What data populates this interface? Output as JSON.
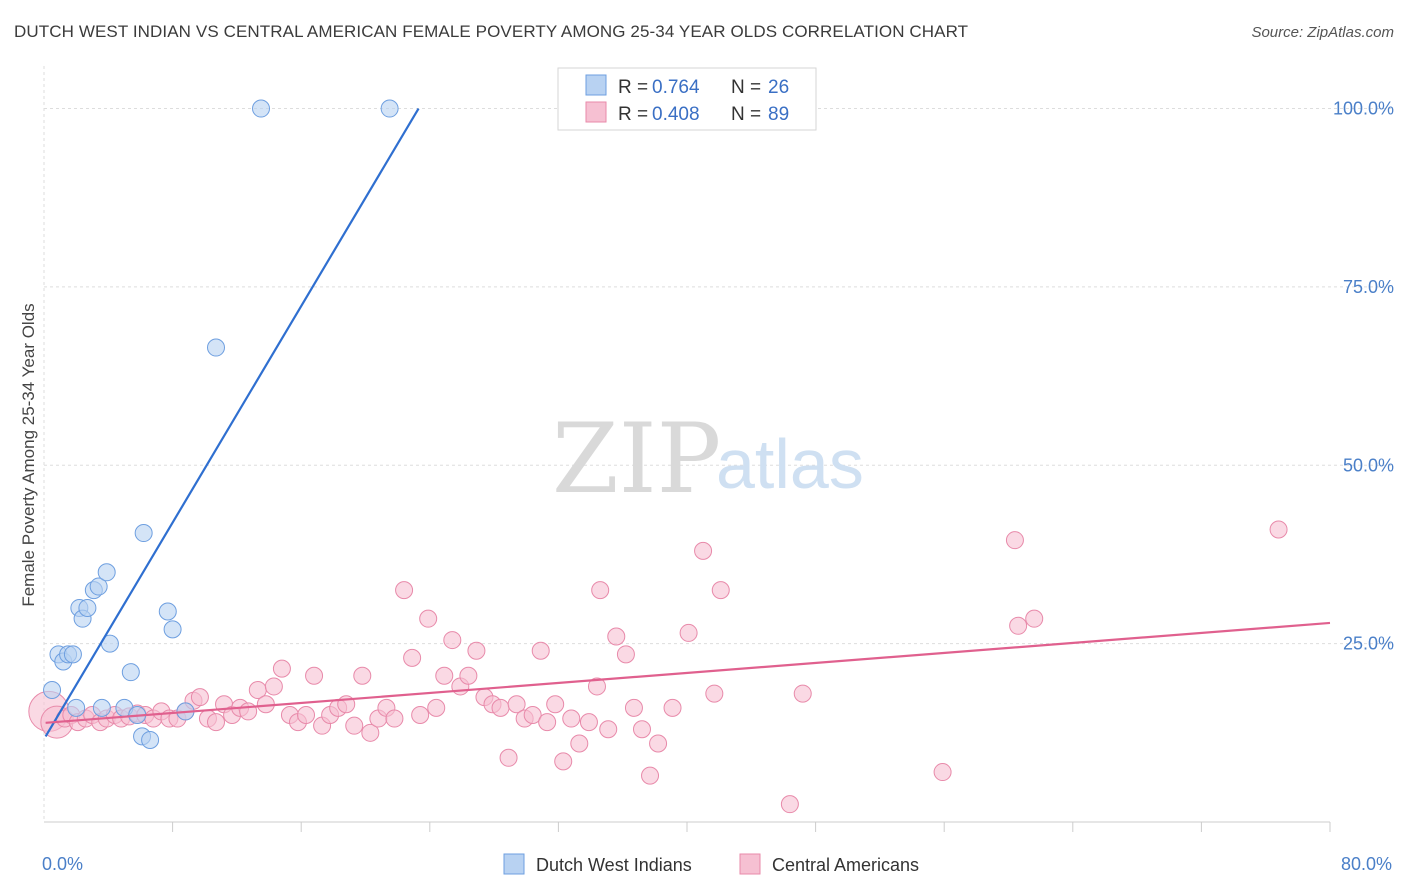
{
  "title": "DUTCH WEST INDIAN VS CENTRAL AMERICAN FEMALE POVERTY AMONG 25-34 YEAR OLDS CORRELATION CHART",
  "source": "Source: ZipAtlas.com",
  "watermark": {
    "zip": "ZIP",
    "atlas": "atlas"
  },
  "colors": {
    "blue_fill": "#b8d2f2",
    "blue_stroke": "#6e9fe0",
    "blue_line": "#2f6fd0",
    "pink_fill": "#f6c0d2",
    "pink_stroke": "#e88aaa",
    "pink_line": "#e0608e",
    "grid": "#dddddd",
    "axis_text": "#4a7fc8"
  },
  "legend": {
    "rows": [
      {
        "r_label": "R =",
        "r_value": "0.764",
        "n_label": "N =",
        "n_value": "26",
        "series": "blue"
      },
      {
        "r_label": "R =",
        "r_value": "0.408",
        "n_label": "N =",
        "n_value": "89",
        "series": "pink"
      }
    ]
  },
  "bottom_legend": [
    "Dutch West Indians",
    "Central Americans"
  ],
  "chart_data": {
    "type": "scatter",
    "title": "DUTCH WEST INDIAN VS CENTRAL AMERICAN FEMALE POVERTY AMONG 25-34 YEAR OLDS CORRELATION CHART",
    "xlabel": "",
    "ylabel": "Female Poverty Among 25-34 Year Olds",
    "xlim": [
      0,
      80
    ],
    "ylim": [
      0,
      104
    ],
    "x_tick_labels": [
      "0.0%",
      "80.0%"
    ],
    "y_ticks": [
      25,
      50,
      75,
      100
    ],
    "y_tick_labels": [
      "25.0%",
      "50.0%",
      "75.0%",
      "100.0%"
    ],
    "grid": true,
    "legend_position": "top-center",
    "series": [
      {
        "name": "Dutch West Indians",
        "color": "#b8d2f2",
        "trend": {
          "x": [
            0.1,
            23.3
          ],
          "y": [
            12.0,
            100.0
          ]
        },
        "points": [
          {
            "x": 0.5,
            "y": 18.5
          },
          {
            "x": 0.9,
            "y": 23.5
          },
          {
            "x": 1.2,
            "y": 22.5
          },
          {
            "x": 1.5,
            "y": 23.5
          },
          {
            "x": 1.8,
            "y": 23.5
          },
          {
            "x": 2.0,
            "y": 16.0
          },
          {
            "x": 2.2,
            "y": 30.0
          },
          {
            "x": 2.4,
            "y": 28.5
          },
          {
            "x": 2.7,
            "y": 30.0
          },
          {
            "x": 3.1,
            "y": 32.5
          },
          {
            "x": 3.4,
            "y": 33.0
          },
          {
            "x": 3.6,
            "y": 16.0
          },
          {
            "x": 3.9,
            "y": 35.0
          },
          {
            "x": 4.1,
            "y": 25.0
          },
          {
            "x": 5.0,
            "y": 16.0
          },
          {
            "x": 5.4,
            "y": 21.0
          },
          {
            "x": 5.8,
            "y": 15.0
          },
          {
            "x": 6.1,
            "y": 12.0
          },
          {
            "x": 6.2,
            "y": 40.5
          },
          {
            "x": 6.6,
            "y": 11.5
          },
          {
            "x": 7.7,
            "y": 29.5
          },
          {
            "x": 8.0,
            "y": 27.0
          },
          {
            "x": 8.8,
            "y": 15.5
          },
          {
            "x": 10.7,
            "y": 66.5
          },
          {
            "x": 13.5,
            "y": 100.0
          },
          {
            "x": 21.5,
            "y": 100.0
          }
        ]
      },
      {
        "name": "Central Americans",
        "color": "#f6c0d2",
        "trend": {
          "x": [
            0.1,
            80.0
          ],
          "y": [
            13.9,
            27.9
          ]
        },
        "points": [
          {
            "x": 0.3,
            "y": 15.5,
            "s": 20
          },
          {
            "x": 0.8,
            "y": 14.0,
            "s": 16
          },
          {
            "x": 1.3,
            "y": 14.5
          },
          {
            "x": 1.7,
            "y": 15.0
          },
          {
            "x": 2.1,
            "y": 14.0
          },
          {
            "x": 2.6,
            "y": 14.5
          },
          {
            "x": 3.0,
            "y": 15.0
          },
          {
            "x": 3.5,
            "y": 14.0
          },
          {
            "x": 3.9,
            "y": 14.5
          },
          {
            "x": 4.4,
            "y": 15.0
          },
          {
            "x": 4.8,
            "y": 14.5
          },
          {
            "x": 5.3,
            "y": 14.8
          },
          {
            "x": 5.8,
            "y": 15.2
          },
          {
            "x": 6.3,
            "y": 15.0
          },
          {
            "x": 6.8,
            "y": 14.5
          },
          {
            "x": 7.3,
            "y": 15.5
          },
          {
            "x": 7.8,
            "y": 14.5
          },
          {
            "x": 8.3,
            "y": 14.5
          },
          {
            "x": 8.8,
            "y": 15.5
          },
          {
            "x": 9.3,
            "y": 17.0
          },
          {
            "x": 9.7,
            "y": 17.5
          },
          {
            "x": 10.2,
            "y": 14.5
          },
          {
            "x": 10.7,
            "y": 14.0
          },
          {
            "x": 11.2,
            "y": 16.5
          },
          {
            "x": 11.7,
            "y": 15.0
          },
          {
            "x": 12.2,
            "y": 16.0
          },
          {
            "x": 12.7,
            "y": 15.5
          },
          {
            "x": 13.3,
            "y": 18.5
          },
          {
            "x": 13.8,
            "y": 16.5
          },
          {
            "x": 14.3,
            "y": 19.0
          },
          {
            "x": 14.8,
            "y": 21.5
          },
          {
            "x": 15.3,
            "y": 15.0
          },
          {
            "x": 15.8,
            "y": 14.0
          },
          {
            "x": 16.3,
            "y": 15.0
          },
          {
            "x": 16.8,
            "y": 20.5
          },
          {
            "x": 17.3,
            "y": 13.5
          },
          {
            "x": 17.8,
            "y": 15.0
          },
          {
            "x": 18.3,
            "y": 16.0
          },
          {
            "x": 18.8,
            "y": 16.5
          },
          {
            "x": 19.3,
            "y": 13.5
          },
          {
            "x": 19.8,
            "y": 20.5
          },
          {
            "x": 20.3,
            "y": 12.5
          },
          {
            "x": 20.8,
            "y": 14.5
          },
          {
            "x": 21.3,
            "y": 16.0
          },
          {
            "x": 21.8,
            "y": 14.5
          },
          {
            "x": 22.4,
            "y": 32.5
          },
          {
            "x": 22.9,
            "y": 23.0
          },
          {
            "x": 23.4,
            "y": 15.0
          },
          {
            "x": 23.9,
            "y": 28.5
          },
          {
            "x": 24.4,
            "y": 16.0
          },
          {
            "x": 24.9,
            "y": 20.5
          },
          {
            "x": 25.4,
            "y": 25.5
          },
          {
            "x": 25.9,
            "y": 19.0
          },
          {
            "x": 26.4,
            "y": 20.5
          },
          {
            "x": 26.9,
            "y": 24.0
          },
          {
            "x": 27.4,
            "y": 17.5
          },
          {
            "x": 27.9,
            "y": 16.5
          },
          {
            "x": 28.4,
            "y": 16.0
          },
          {
            "x": 28.9,
            "y": 9.0
          },
          {
            "x": 29.4,
            "y": 16.5
          },
          {
            "x": 29.9,
            "y": 14.5
          },
          {
            "x": 30.4,
            "y": 15.0
          },
          {
            "x": 30.9,
            "y": 24.0
          },
          {
            "x": 31.3,
            "y": 14.0
          },
          {
            "x": 31.8,
            "y": 16.5
          },
          {
            "x": 32.3,
            "y": 8.5
          },
          {
            "x": 32.8,
            "y": 14.5
          },
          {
            "x": 33.3,
            "y": 11.0
          },
          {
            "x": 33.9,
            "y": 14.0
          },
          {
            "x": 34.4,
            "y": 19.0
          },
          {
            "x": 34.6,
            "y": 32.5
          },
          {
            "x": 35.1,
            "y": 13.0
          },
          {
            "x": 35.6,
            "y": 26.0
          },
          {
            "x": 36.2,
            "y": 23.5
          },
          {
            "x": 36.7,
            "y": 16.0
          },
          {
            "x": 37.2,
            "y": 13.0
          },
          {
            "x": 37.7,
            "y": 6.5
          },
          {
            "x": 38.2,
            "y": 11.0
          },
          {
            "x": 39.1,
            "y": 16.0
          },
          {
            "x": 40.1,
            "y": 26.5
          },
          {
            "x": 41.0,
            "y": 38.0
          },
          {
            "x": 41.7,
            "y": 18.0
          },
          {
            "x": 42.1,
            "y": 32.5
          },
          {
            "x": 47.2,
            "y": 18.0
          },
          {
            "x": 46.4,
            "y": 2.5
          },
          {
            "x": 55.9,
            "y": 7.0
          },
          {
            "x": 60.4,
            "y": 39.5
          },
          {
            "x": 60.6,
            "y": 27.5
          },
          {
            "x": 61.6,
            "y": 28.5
          },
          {
            "x": 76.8,
            "y": 41.0
          }
        ]
      }
    ]
  }
}
